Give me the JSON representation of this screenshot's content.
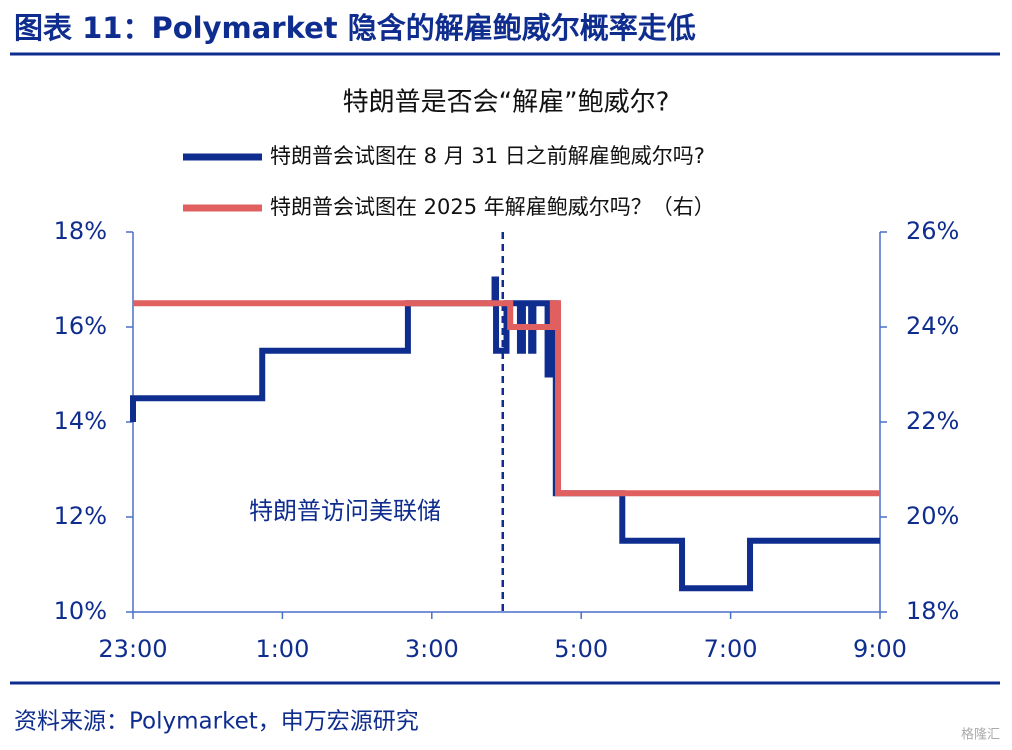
{
  "chart_data": {
    "type": "line",
    "caption": "图表 11：Polymarket 隐含的解雇鲍威尔概率走低",
    "title": "特朗普是否会“解雇”鲍威尔?",
    "source": "资料来源：Polymarket，申万宏源研究",
    "watermark": "格隆汇",
    "annotation": {
      "text": "特朗普访问美联储",
      "x": 4.95
    },
    "xlim": [
      0,
      10
    ],
    "xticks": [
      {
        "value": 0,
        "label": "23:00"
      },
      {
        "value": 2,
        "label": "1:00"
      },
      {
        "value": 4,
        "label": "3:00"
      },
      {
        "value": 6,
        "label": "5:00"
      },
      {
        "value": 8,
        "label": "7:00"
      },
      {
        "value": 10,
        "label": "9:00"
      }
    ],
    "ylim": [
      10,
      18
    ],
    "yticks": [
      {
        "value": 10,
        "label": "10%"
      },
      {
        "value": 12,
        "label": "12%"
      },
      {
        "value": 14,
        "label": "14%"
      },
      {
        "value": 16,
        "label": "16%"
      },
      {
        "value": 18,
        "label": "18%"
      }
    ],
    "y2lim": [
      18,
      26
    ],
    "y2ticks": [
      {
        "value": 18,
        "label": "18%"
      },
      {
        "value": 20,
        "label": "20%"
      },
      {
        "value": 22,
        "label": "22%"
      },
      {
        "value": 24,
        "label": "24%"
      },
      {
        "value": 26,
        "label": "26%"
      }
    ],
    "series": [
      {
        "name": "特朗普会试图在 8 月 31 日之前解雇鲍威尔吗?",
        "color": "#0f2d8f",
        "x": [
          0,
          0,
          1.73,
          1.73,
          3.68,
          3.68,
          4.84,
          4.84,
          4.86,
          4.86,
          5.0,
          5.0,
          5.18,
          5.18,
          5.22,
          5.22,
          5.33,
          5.33,
          5.36,
          5.36,
          5.55,
          5.55,
          5.58,
          5.58,
          5.66,
          5.66,
          6.55,
          6.55,
          7.35,
          7.35,
          8.26,
          8.26,
          10
        ],
        "values": [
          14,
          14.5,
          14.5,
          15.5,
          15.5,
          16.5,
          16.5,
          17,
          17,
          15.5,
          15.5,
          16.5,
          16.5,
          15.5,
          15.5,
          16.5,
          16.5,
          15.5,
          15.5,
          16.5,
          16.5,
          15,
          15,
          16.5,
          16.5,
          12.5,
          12.5,
          11.5,
          11.5,
          10.5,
          10.5,
          11.5,
          11.5
        ]
      },
      {
        "name": "特朗普会试图在 2025 年解雇鲍威尔吗？（右）",
        "color": "#e0605f",
        "axis": "y2",
        "x": [
          0,
          5.05,
          5.05,
          5.62,
          5.62,
          5.69,
          5.69,
          10
        ],
        "values": [
          24.5,
          24.5,
          24,
          24,
          24.5,
          24.5,
          20.5,
          20.5
        ]
      }
    ]
  }
}
